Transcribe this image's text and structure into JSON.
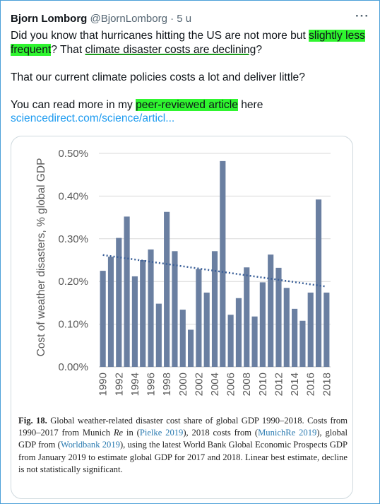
{
  "tweet": {
    "author": "Bjorn Lomborg",
    "handle": "@BjornLomborg",
    "separator": " · ",
    "time": "5 u",
    "more_icon": "more-horizontal-icon",
    "line1_a": "Did you know that hurricanes hitting the US are not more but ",
    "line1_hl": "slightly less frequent",
    "line1_b": "? That ",
    "line1_ul": "climate disaster costs are declining",
    "line1_c": "?",
    "line2": "That our current climate policies costs a lot and deliver little?",
    "line3_a": "You can read more in my ",
    "line3_hl": "peer-reviewed article",
    "line3_b": " here",
    "link": "sciencedirect.com/science/articl..."
  },
  "caption": {
    "fig": "Fig. 18.",
    "t1": " Global weather-related disaster cost share of global GDP 1990–2018. Costs from 1990–2017 from Munich ",
    "re": "Re",
    "t2": " in (",
    "ref1": "Pielke 2019",
    "t3": "), 2018 costs from (",
    "ref2": "MunichRe 2019",
    "t4": "), global GDP from (",
    "ref3": "Worldbank 2019",
    "t5": "), using the latest World Bank Global Economic Prospects GDP from January 2019 to estimate global GDP for 2017 and 2018. Linear best estimate, decline is not statistically significant."
  },
  "chart_data": {
    "type": "bar",
    "ylabel": "Cost of weather disasters, % global GDP",
    "ylim": [
      0,
      0.5
    ],
    "yticks": [
      "0.00%",
      "0.10%",
      "0.20%",
      "0.30%",
      "0.40%",
      "0.50%"
    ],
    "categories": [
      "1990",
      "1991",
      "1992",
      "1993",
      "1994",
      "1995",
      "1996",
      "1997",
      "1998",
      "1999",
      "2000",
      "2001",
      "2002",
      "2003",
      "2004",
      "2005",
      "2006",
      "2007",
      "2008",
      "2009",
      "2010",
      "2011",
      "2012",
      "2013",
      "2014",
      "2015",
      "2016",
      "2017",
      "2018"
    ],
    "xtick_labels": [
      "1990",
      "1992",
      "1994",
      "1996",
      "1998",
      "2000",
      "2002",
      "2004",
      "2006",
      "2008",
      "2010",
      "2012",
      "2014",
      "2016",
      "2018"
    ],
    "values": [
      0.225,
      0.258,
      0.302,
      0.352,
      0.212,
      0.25,
      0.275,
      0.148,
      0.363,
      0.271,
      0.134,
      0.087,
      0.229,
      0.174,
      0.271,
      0.482,
      0.122,
      0.161,
      0.233,
      0.118,
      0.198,
      0.263,
      0.232,
      0.185,
      0.136,
      0.108,
      0.174,
      0.392,
      0.174
    ],
    "trend": {
      "start": 0.262,
      "end": 0.188
    },
    "bar_color": "#6a7fa1",
    "trend_color": "#3a5f98",
    "grid": true
  }
}
